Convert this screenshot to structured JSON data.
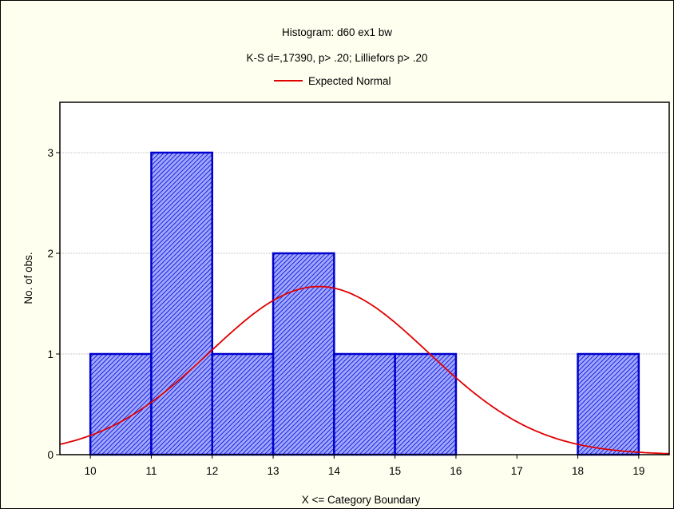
{
  "chart_data": {
    "type": "bar",
    "title": "Histogram: d60 ex1 bw",
    "subtitle": "K-S d=,17390, p> .20; Lilliefors p> .20",
    "legend": {
      "label": "Expected Normal",
      "color": "#e00000",
      "placement": "top-center"
    },
    "xlabel": "X <= Category Boundary",
    "ylabel": "No. of obs.",
    "xlim": [
      9.5,
      19.5
    ],
    "ylim": [
      0,
      3.5
    ],
    "xticks": [
      10,
      11,
      12,
      13,
      14,
      15,
      16,
      17,
      18,
      19
    ],
    "yticks": [
      0,
      1,
      2,
      3
    ],
    "grid": true,
    "bins": [
      {
        "from": 10,
        "to": 11,
        "count": 1
      },
      {
        "from": 11,
        "to": 12,
        "count": 3
      },
      {
        "from": 12,
        "to": 13,
        "count": 1
      },
      {
        "from": 13,
        "to": 14,
        "count": 2
      },
      {
        "from": 14,
        "to": 15,
        "count": 1
      },
      {
        "from": 15,
        "to": 16,
        "count": 1
      },
      {
        "from": 16,
        "to": 17,
        "count": 0
      },
      {
        "from": 17,
        "to": 18,
        "count": 0
      },
      {
        "from": 18,
        "to": 19,
        "count": 1
      }
    ],
    "expected_normal": {
      "peak_x": 13.75,
      "peak_y": 1.67,
      "sd": 1.8,
      "color": "#e00000"
    },
    "bar_fill": "#9fa8ff",
    "bar_hatch": "#0000cc",
    "bar_edge": "#0000cc"
  }
}
